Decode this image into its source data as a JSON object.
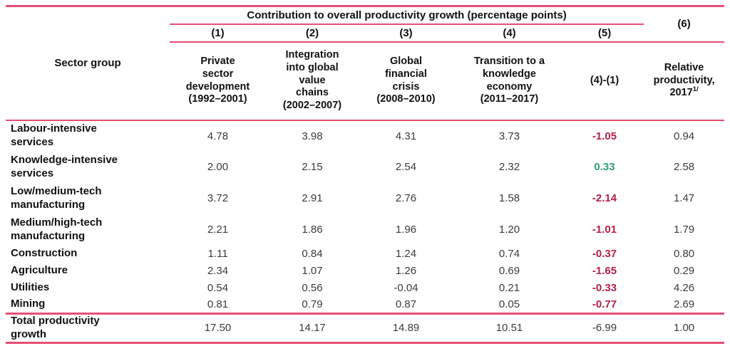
{
  "colors": {
    "rule_pink": "#e64e74",
    "negative_red": "#b52047",
    "positive_green": "#2f9e70"
  },
  "header": {
    "span_title": "Contribution to overall productivity growth (percentage points)",
    "sector_group": "Sector group",
    "column_numbers": [
      "(1)",
      "(2)",
      "(3)",
      "(4)",
      "(5)"
    ],
    "col6_number": "(6)",
    "column_titles": [
      "Private\nsector\ndevelopment\n(1992–2001)",
      "Integration\ninto global\nvalue\nchains\n(2002–2007)",
      "Global\nfinancial\ncrisis\n(2008–2010)",
      "Transition to a\nknowledge\neconomy\n(2011–2017)",
      "(4)-(1)",
      "Relative\nproductivity,\n2017"
    ],
    "col6_footnote": "1/"
  },
  "rows": [
    {
      "label": "Labour-intensive\nservices",
      "values": [
        "4.78",
        "3.98",
        "4.31",
        "3.73",
        "-1.05",
        "0.94"
      ]
    },
    {
      "label": "Knowledge-intensive\nservices",
      "values": [
        "2.00",
        "2.15",
        "2.54",
        "2.32",
        "0.33",
        "2.58"
      ]
    },
    {
      "label": "Low/medium-tech\nmanufacturing",
      "values": [
        "3.72",
        "2.91",
        "2.76",
        "1.58",
        "-2.14",
        "1.47"
      ]
    },
    {
      "label": "Medium/high-tech\nmanufacturing",
      "values": [
        "2.21",
        "1.86",
        "1.96",
        "1.20",
        "-1.01",
        "1.79"
      ]
    },
    {
      "label": "Construction",
      "values": [
        "1.11",
        "0.84",
        "1.24",
        "0.74",
        "-0.37",
        "0.80"
      ]
    },
    {
      "label": "Agriculture",
      "values": [
        "2.34",
        "1.07",
        "1.26",
        "0.69",
        "-1.65",
        "0.29"
      ]
    },
    {
      "label": "Utilities",
      "values": [
        "0.54",
        "0.56",
        "-0.04",
        "0.21",
        "-0.33",
        "4.26"
      ]
    },
    {
      "label": "Mining",
      "values": [
        "0.81",
        "0.79",
        "0.87",
        "0.05",
        "-0.77",
        "2.69"
      ]
    }
  ],
  "total_row": {
    "label": "Total productivity\ngrowth",
    "values": [
      "17.50",
      "14.17",
      "14.89",
      "10.51",
      "-6.99",
      "1.00"
    ]
  }
}
